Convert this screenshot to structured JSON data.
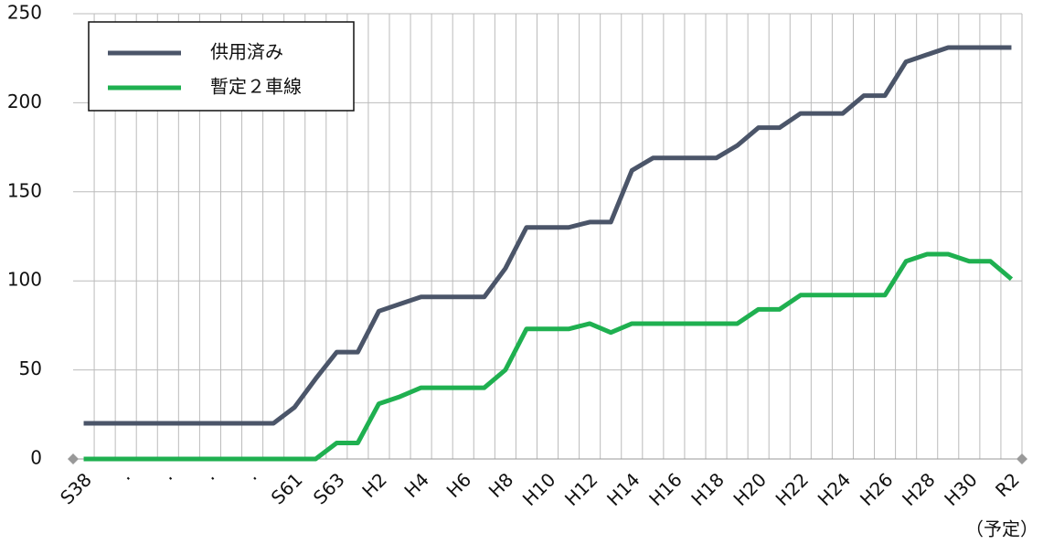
{
  "chart_data": {
    "type": "line",
    "categories": [
      "S38",
      null,
      "·",
      null,
      "·",
      null,
      "·",
      null,
      "·",
      null,
      "S61",
      null,
      "S63",
      null,
      "H2",
      null,
      "H4",
      null,
      "H6",
      null,
      "H8",
      null,
      "H10",
      null,
      "H12",
      null,
      "H14",
      null,
      "H16",
      null,
      "H18",
      null,
      "H20",
      null,
      "H22",
      null,
      "H24",
      null,
      "H26",
      null,
      "H28",
      null,
      "H30",
      null,
      "R2"
    ],
    "series": [
      {
        "name": "供用済み",
        "color": "#4b5569",
        "values": [
          20,
          20,
          20,
          20,
          20,
          20,
          20,
          20,
          20,
          20,
          29,
          45,
          60,
          60,
          83,
          87,
          91,
          91,
          91,
          91,
          107,
          130,
          130,
          130,
          133,
          133,
          162,
          169,
          169,
          169,
          169,
          176,
          186,
          186,
          194,
          194,
          194,
          204,
          204,
          223,
          227,
          231,
          231,
          231,
          231
        ]
      },
      {
        "name": "暫定２車線",
        "color": "#1fb050",
        "values": [
          0,
          0,
          0,
          0,
          0,
          0,
          0,
          0,
          0,
          0,
          0,
          0,
          9,
          9,
          31,
          35,
          40,
          40,
          40,
          40,
          50,
          73,
          73,
          73,
          76,
          71,
          76,
          76,
          76,
          76,
          76,
          76,
          84,
          84,
          92,
          92,
          92,
          92,
          92,
          111,
          115,
          115,
          111,
          111,
          101
        ]
      }
    ],
    "ylim": [
      0,
      250
    ],
    "yticks": [
      0,
      50,
      100,
      150,
      200,
      250
    ],
    "grid": true,
    "annotation": "（予定）"
  }
}
